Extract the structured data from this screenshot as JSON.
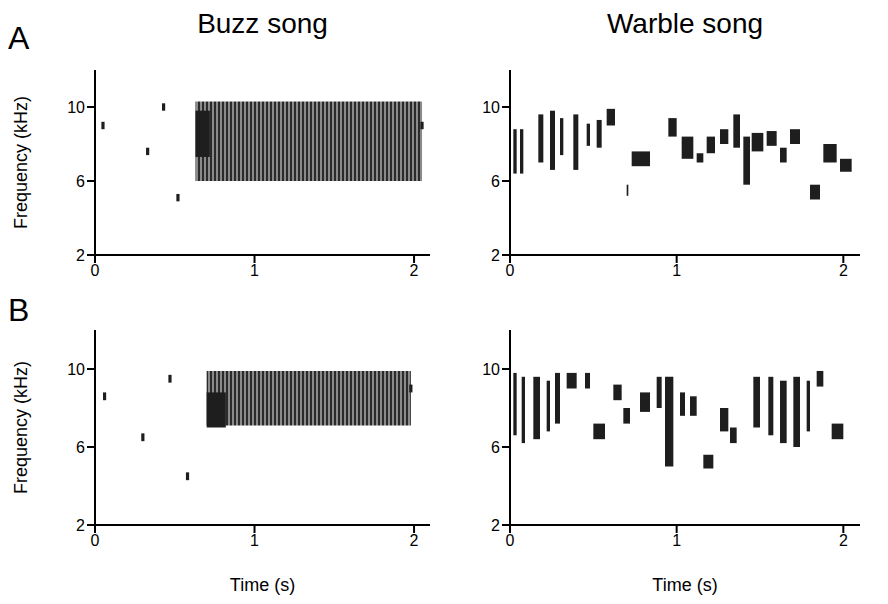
{
  "chart_data": [
    {
      "type": "spectrogram",
      "panel": "A",
      "title": "Buzz song",
      "ylabel": "Frequency (kHz)",
      "xlim": [
        0,
        2.1
      ],
      "xticks": [
        0,
        1,
        2
      ],
      "ylim": [
        2,
        12
      ],
      "yticks": [
        2,
        6,
        10
      ],
      "elements": [
        {
          "t": [
            0.04,
            0.06
          ],
          "f": [
            8.8,
            9.2
          ]
        },
        {
          "t": [
            0.32,
            0.34
          ],
          "f": [
            7.4,
            7.8
          ]
        },
        {
          "t": [
            0.42,
            0.44
          ],
          "f": [
            9.8,
            10.2
          ]
        },
        {
          "t": [
            0.51,
            0.53
          ],
          "f": [
            4.9,
            5.3
          ]
        },
        {
          "t": [
            0.63,
            2.05
          ],
          "f": [
            6.0,
            10.3
          ]
        },
        {
          "t": [
            0.63,
            0.72
          ],
          "f": [
            7.3,
            9.8
          ]
        },
        {
          "t": [
            2.04,
            2.06
          ],
          "f": [
            8.8,
            9.2
          ]
        }
      ]
    },
    {
      "type": "spectrogram",
      "title": "Warble song",
      "xlim": [
        0,
        2.1
      ],
      "xticks": [
        0,
        1,
        2
      ],
      "ylim": [
        2,
        12
      ],
      "yticks": [
        2,
        6,
        10
      ],
      "elements": [
        {
          "t": [
            0.02,
            0.04
          ],
          "f": [
            6.4,
            8.8
          ]
        },
        {
          "t": [
            0.06,
            0.08
          ],
          "f": [
            6.4,
            8.8
          ]
        },
        {
          "t": [
            0.17,
            0.2
          ],
          "f": [
            7.0,
            9.6
          ]
        },
        {
          "t": [
            0.24,
            0.27
          ],
          "f": [
            6.6,
            9.8
          ]
        },
        {
          "t": [
            0.3,
            0.32
          ],
          "f": [
            7.4,
            9.4
          ]
        },
        {
          "t": [
            0.38,
            0.41
          ],
          "f": [
            6.6,
            9.6
          ]
        },
        {
          "t": [
            0.46,
            0.48
          ],
          "f": [
            7.9,
            9.1
          ]
        },
        {
          "t": [
            0.52,
            0.55
          ],
          "f": [
            7.8,
            9.3
          ]
        },
        {
          "t": [
            0.58,
            0.63
          ],
          "f": [
            9.0,
            9.9
          ]
        },
        {
          "t": [
            0.7,
            0.71
          ],
          "f": [
            5.2,
            5.8
          ]
        },
        {
          "t": [
            0.73,
            0.84
          ],
          "f": [
            6.8,
            7.6
          ]
        },
        {
          "t": [
            0.95,
            1.0
          ],
          "f": [
            8.4,
            9.4
          ]
        },
        {
          "t": [
            1.03,
            1.1
          ],
          "f": [
            7.2,
            8.4
          ]
        },
        {
          "t": [
            1.12,
            1.16
          ],
          "f": [
            7.0,
            7.5
          ]
        },
        {
          "t": [
            1.18,
            1.23
          ],
          "f": [
            7.5,
            8.4
          ]
        },
        {
          "t": [
            1.26,
            1.31
          ],
          "f": [
            8.0,
            8.8
          ]
        },
        {
          "t": [
            1.34,
            1.38
          ],
          "f": [
            7.8,
            9.6
          ]
        },
        {
          "t": [
            1.4,
            1.44
          ],
          "f": [
            5.8,
            8.4
          ]
        },
        {
          "t": [
            1.45,
            1.52
          ],
          "f": [
            7.6,
            8.6
          ]
        },
        {
          "t": [
            1.54,
            1.6
          ],
          "f": [
            7.9,
            8.7
          ]
        },
        {
          "t": [
            1.62,
            1.66
          ],
          "f": [
            7.0,
            7.8
          ]
        },
        {
          "t": [
            1.68,
            1.74
          ],
          "f": [
            8.0,
            8.8
          ]
        },
        {
          "t": [
            1.8,
            1.86
          ],
          "f": [
            5.0,
            5.8
          ]
        },
        {
          "t": [
            1.88,
            1.96
          ],
          "f": [
            7.0,
            8.0
          ]
        },
        {
          "t": [
            1.98,
            2.05
          ],
          "f": [
            6.5,
            7.2
          ]
        }
      ]
    },
    {
      "type": "spectrogram",
      "panel": "B",
      "ylabel": "Frequency (kHz)",
      "xlabel": "Time (s)",
      "xlim": [
        0,
        2.1
      ],
      "xticks": [
        0,
        1,
        2
      ],
      "ylim": [
        2,
        12
      ],
      "yticks": [
        2,
        6,
        10
      ],
      "elements": [
        {
          "t": [
            0.05,
            0.07
          ],
          "f": [
            8.4,
            8.8
          ]
        },
        {
          "t": [
            0.29,
            0.31
          ],
          "f": [
            6.3,
            6.7
          ]
        },
        {
          "t": [
            0.46,
            0.48
          ],
          "f": [
            9.3,
            9.7
          ]
        },
        {
          "t": [
            0.57,
            0.59
          ],
          "f": [
            4.3,
            4.7
          ]
        },
        {
          "t": [
            0.7,
            1.98
          ],
          "f": [
            7.1,
            9.9
          ]
        },
        {
          "t": [
            0.7,
            0.82
          ],
          "f": [
            7.0,
            8.8
          ]
        },
        {
          "t": [
            1.97,
            1.99
          ],
          "f": [
            8.8,
            9.2
          ]
        }
      ]
    },
    {
      "type": "spectrogram",
      "xlabel": "Time (s)",
      "xlim": [
        0,
        2.1
      ],
      "xticks": [
        0,
        1,
        2
      ],
      "ylim": [
        2,
        12
      ],
      "yticks": [
        2,
        6,
        10
      ],
      "elements": [
        {
          "t": [
            0.02,
            0.04
          ],
          "f": [
            6.6,
            9.8
          ]
        },
        {
          "t": [
            0.07,
            0.09
          ],
          "f": [
            6.2,
            9.6
          ]
        },
        {
          "t": [
            0.14,
            0.18
          ],
          "f": [
            6.4,
            9.6
          ]
        },
        {
          "t": [
            0.22,
            0.24
          ],
          "f": [
            6.8,
            9.4
          ]
        },
        {
          "t": [
            0.27,
            0.3
          ],
          "f": [
            7.2,
            9.8
          ]
        },
        {
          "t": [
            0.34,
            0.4
          ],
          "f": [
            9.0,
            9.8
          ]
        },
        {
          "t": [
            0.45,
            0.48
          ],
          "f": [
            9.0,
            9.8
          ]
        },
        {
          "t": [
            0.5,
            0.57
          ],
          "f": [
            6.4,
            7.2
          ]
        },
        {
          "t": [
            0.62,
            0.67
          ],
          "f": [
            8.4,
            9.2
          ]
        },
        {
          "t": [
            0.68,
            0.72
          ],
          "f": [
            7.2,
            8.0
          ]
        },
        {
          "t": [
            0.78,
            0.84
          ],
          "f": [
            7.8,
            8.8
          ]
        },
        {
          "t": [
            0.88,
            0.91
          ],
          "f": [
            8.0,
            9.6
          ]
        },
        {
          "t": [
            0.93,
            0.98
          ],
          "f": [
            5.0,
            9.6
          ]
        },
        {
          "t": [
            1.02,
            1.05
          ],
          "f": [
            7.6,
            8.8
          ]
        },
        {
          "t": [
            1.08,
            1.12
          ],
          "f": [
            7.6,
            8.6
          ]
        },
        {
          "t": [
            1.16,
            1.22
          ],
          "f": [
            4.9,
            5.6
          ]
        },
        {
          "t": [
            1.26,
            1.31
          ],
          "f": [
            6.8,
            8.0
          ]
        },
        {
          "t": [
            1.32,
            1.36
          ],
          "f": [
            6.2,
            7.0
          ]
        },
        {
          "t": [
            1.46,
            1.5
          ],
          "f": [
            7.0,
            9.6
          ]
        },
        {
          "t": [
            1.55,
            1.58
          ],
          "f": [
            6.6,
            9.6
          ]
        },
        {
          "t": [
            1.62,
            1.66
          ],
          "f": [
            6.2,
            9.4
          ]
        },
        {
          "t": [
            1.7,
            1.74
          ],
          "f": [
            6.0,
            9.6
          ]
        },
        {
          "t": [
            1.78,
            1.8
          ],
          "f": [
            6.8,
            9.4
          ]
        },
        {
          "t": [
            1.84,
            1.88
          ],
          "f": [
            9.1,
            9.9
          ]
        },
        {
          "t": [
            1.93,
            2.0
          ],
          "f": [
            6.4,
            7.2
          ]
        }
      ]
    }
  ]
}
